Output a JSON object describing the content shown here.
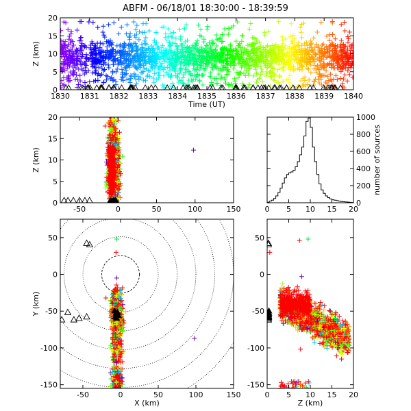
{
  "title": "ABFM - 06/18/01 18:30:00 - 18:39:59",
  "chart_data": [
    {
      "panel": "time-height",
      "type": "scatter",
      "xlabel": "Time (UT)",
      "ylabel": "Z (km)",
      "xlim": [
        1830,
        1840
      ],
      "ylim": [
        0,
        20
      ],
      "xticks": [
        "1830",
        "1831",
        "1832",
        "1833",
        "1834",
        "1835",
        "1836",
        "1837",
        "1838",
        "1839",
        "1840"
      ],
      "yticks": [
        "0",
        "5",
        "10",
        "15",
        "20"
      ],
      "color_scale": "time (purple → red)",
      "sources_z_core": [
        5,
        13
      ],
      "stations_z": 0
    },
    {
      "panel": "x-z",
      "type": "scatter",
      "xlabel": "",
      "ylabel": "Z (km)",
      "xlim": [
        -75,
        150
      ],
      "ylim": [
        0,
        20
      ],
      "xticks": [
        "-50",
        "0",
        "50",
        "100",
        "150"
      ],
      "yticks": [
        "0",
        "5",
        "10",
        "15",
        "20"
      ],
      "outlier": {
        "x": 98,
        "z": 12.3
      }
    },
    {
      "panel": "height-histogram",
      "type": "line",
      "xlabel": "",
      "ylabel": "number of sources",
      "xlim": [
        0,
        20
      ],
      "ylim": [
        0,
        1000
      ],
      "xticks": [
        "0",
        "5",
        "10",
        "15",
        "20"
      ],
      "yticks": [
        "0",
        "200",
        "400",
        "600",
        "800",
        "1000"
      ],
      "x": [
        0.5,
        1,
        1.5,
        2,
        2.5,
        3,
        3.5,
        4,
        4.5,
        5,
        5.5,
        6,
        6.5,
        7,
        7.5,
        8,
        8.5,
        9,
        9.5,
        10,
        10.5,
        11,
        11.5,
        12,
        12.5,
        13,
        13.5,
        14,
        14.5,
        15,
        15.5,
        16,
        16.5,
        17,
        17.5,
        18,
        18.5,
        19,
        19.5,
        20
      ],
      "y": [
        5,
        20,
        30,
        50,
        80,
        120,
        170,
        230,
        290,
        330,
        350,
        360,
        380,
        420,
        480,
        560,
        650,
        780,
        950,
        990,
        880,
        650,
        480,
        330,
        220,
        150,
        110,
        80,
        60,
        45,
        35,
        30,
        25,
        20,
        15,
        12,
        10,
        8,
        5,
        3
      ]
    },
    {
      "panel": "plan-view",
      "type": "scatter",
      "xlabel": "X (km)",
      "ylabel": "Y (km)",
      "xlim": [
        -80,
        150
      ],
      "ylim": [
        -155,
        75
      ],
      "xticks": [
        "-50",
        "0",
        "50",
        "100",
        "150"
      ],
      "yticks": [
        "-150",
        "-100",
        "-50",
        "0",
        "50"
      ],
      "range_rings_km": [
        25,
        50,
        75,
        100,
        125,
        150,
        175
      ],
      "outlier": {
        "x": 98,
        "y": -87
      }
    },
    {
      "panel": "y-z",
      "type": "scatter",
      "xlabel": "Z (km)",
      "ylabel": "",
      "xlim": [
        0,
        20
      ],
      "ylim": [
        -155,
        75
      ],
      "xticks": [
        "0",
        "5",
        "10",
        "15",
        "20"
      ],
      "yticks": [
        "-150",
        "-100",
        "-50",
        "0",
        "50"
      ]
    }
  ]
}
